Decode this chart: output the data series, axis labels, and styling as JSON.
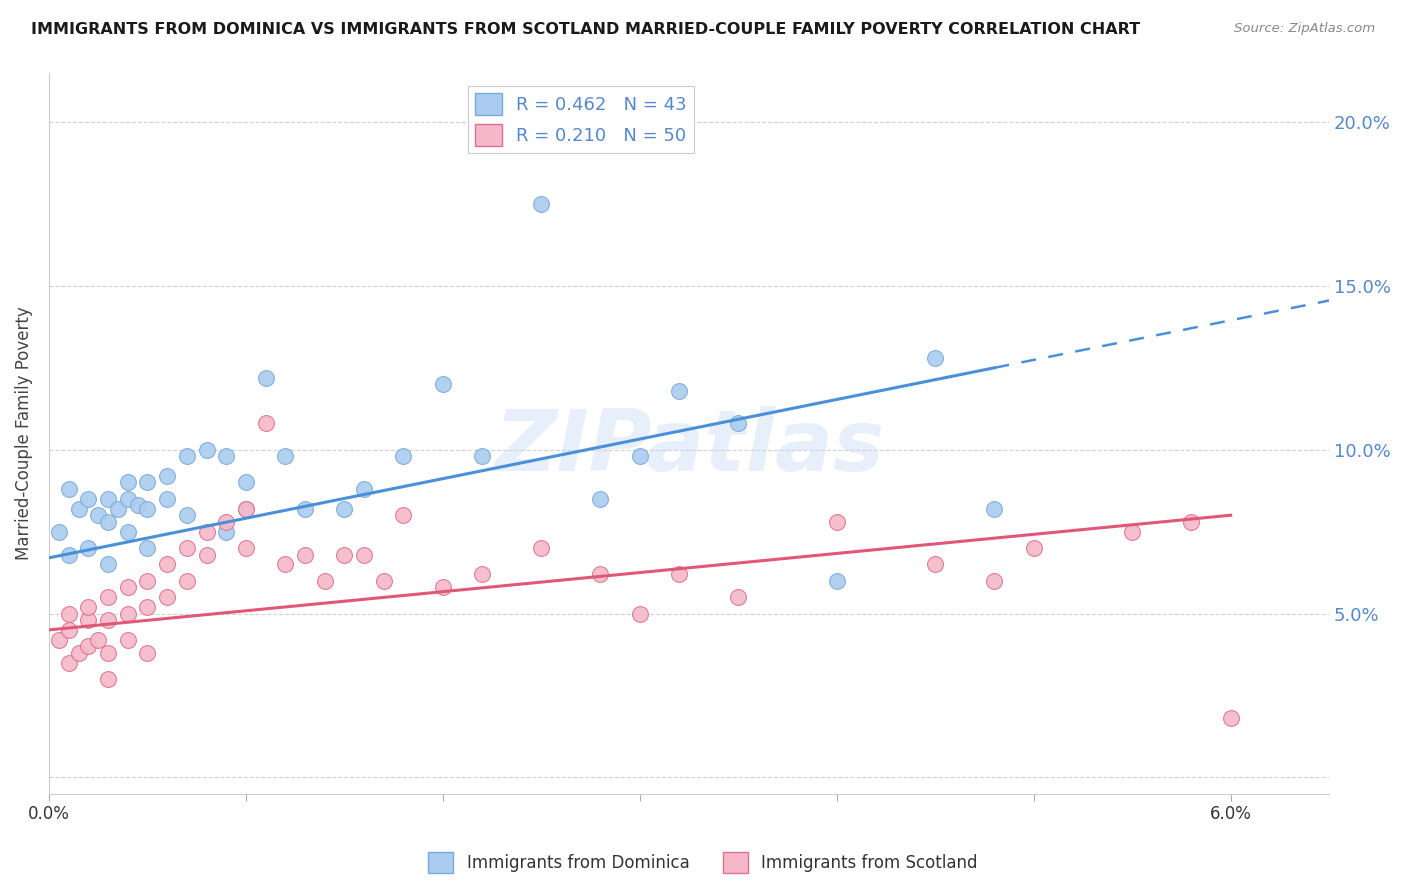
{
  "title": "IMMIGRANTS FROM DOMINICA VS IMMIGRANTS FROM SCOTLAND MARRIED-COUPLE FAMILY POVERTY CORRELATION CHART",
  "source": "Source: ZipAtlas.com",
  "ylabel": "Married-Couple Family Poverty",
  "xlim": [
    0.0,
    0.065
  ],
  "ylim": [
    -0.005,
    0.215
  ],
  "yticks": [
    0.0,
    0.05,
    0.1,
    0.15,
    0.2
  ],
  "ytick_labels_right": [
    "5.0%",
    "10.0%",
    "15.0%",
    "20.0%"
  ],
  "xticks": [
    0.0,
    0.01,
    0.02,
    0.03,
    0.04,
    0.05,
    0.06
  ],
  "xtick_labels": [
    "0.0%",
    "",
    "",
    "",
    "",
    "",
    "6.0%"
  ],
  "dominica_color": "#aaccf0",
  "dominica_edge": "#7aaad8",
  "scotland_color": "#f5b8c8",
  "scotland_edge": "#e07090",
  "line_blue": "#4a90d9",
  "line_pink": "#e05878",
  "axis_color": "#5588cc",
  "legend_r1": "R = 0.462",
  "legend_n1": "N = 43",
  "legend_r2": "R = 0.210",
  "legend_n2": "N = 50",
  "dominica_x": [
    0.0005,
    0.001,
    0.001,
    0.0015,
    0.002,
    0.002,
    0.0025,
    0.003,
    0.003,
    0.003,
    0.0035,
    0.004,
    0.004,
    0.004,
    0.0045,
    0.005,
    0.005,
    0.005,
    0.006,
    0.006,
    0.007,
    0.007,
    0.008,
    0.009,
    0.009,
    0.01,
    0.01,
    0.011,
    0.012,
    0.013,
    0.015,
    0.016,
    0.018,
    0.02,
    0.022,
    0.025,
    0.028,
    0.03,
    0.032,
    0.035,
    0.04,
    0.045,
    0.048
  ],
  "dominica_y": [
    0.075,
    0.088,
    0.068,
    0.082,
    0.085,
    0.07,
    0.08,
    0.085,
    0.078,
    0.065,
    0.082,
    0.09,
    0.085,
    0.075,
    0.083,
    0.09,
    0.082,
    0.07,
    0.092,
    0.085,
    0.098,
    0.08,
    0.1,
    0.098,
    0.075,
    0.09,
    0.082,
    0.122,
    0.098,
    0.082,
    0.082,
    0.088,
    0.098,
    0.12,
    0.098,
    0.175,
    0.085,
    0.098,
    0.118,
    0.108,
    0.06,
    0.128,
    0.082
  ],
  "scotland_x": [
    0.0005,
    0.001,
    0.001,
    0.001,
    0.0015,
    0.002,
    0.002,
    0.002,
    0.0025,
    0.003,
    0.003,
    0.003,
    0.003,
    0.004,
    0.004,
    0.004,
    0.005,
    0.005,
    0.005,
    0.006,
    0.006,
    0.007,
    0.007,
    0.008,
    0.008,
    0.009,
    0.01,
    0.01,
    0.011,
    0.012,
    0.013,
    0.014,
    0.015,
    0.016,
    0.017,
    0.018,
    0.02,
    0.022,
    0.025,
    0.028,
    0.03,
    0.032,
    0.035,
    0.04,
    0.045,
    0.048,
    0.05,
    0.055,
    0.058,
    0.06
  ],
  "scotland_y": [
    0.042,
    0.035,
    0.045,
    0.05,
    0.038,
    0.048,
    0.04,
    0.052,
    0.042,
    0.055,
    0.048,
    0.038,
    0.03,
    0.058,
    0.05,
    0.042,
    0.06,
    0.052,
    0.038,
    0.065,
    0.055,
    0.07,
    0.06,
    0.075,
    0.068,
    0.078,
    0.082,
    0.07,
    0.108,
    0.065,
    0.068,
    0.06,
    0.068,
    0.068,
    0.06,
    0.08,
    0.058,
    0.062,
    0.07,
    0.062,
    0.05,
    0.062,
    0.055,
    0.078,
    0.065,
    0.06,
    0.07,
    0.075,
    0.078,
    0.018
  ],
  "watermark": "ZIPatlas",
  "marker_size": 130,
  "background_color": "#ffffff",
  "grid_color": "#d0d0d8"
}
